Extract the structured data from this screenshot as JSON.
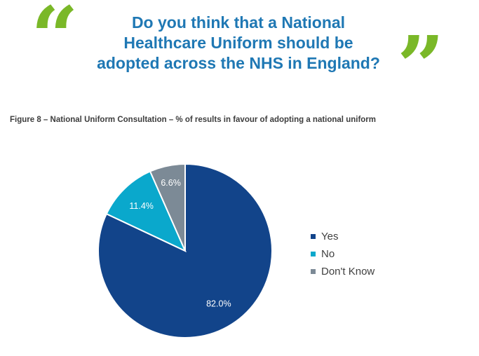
{
  "quotes": {
    "open": "“",
    "close": "”"
  },
  "header": {
    "lines": [
      "Do you think that a National",
      "Healthcare Uniform should be",
      "adopted across the NHS in England?"
    ]
  },
  "caption": "Figure 8 – National Uniform Consultation – % of results in favour of adopting a national uniform",
  "colors": {
    "question_text": "#1f78b4",
    "quote_marks": "#7ab828",
    "yes": "#12448a",
    "no": "#0aa8cc",
    "dont_know": "#7c8a96"
  },
  "chart_data": {
    "type": "pie",
    "title": "",
    "legend_position": "right",
    "slices": [
      {
        "name": "Yes",
        "value": 82.0,
        "label": "82.0%",
        "color": "#12448a"
      },
      {
        "name": "No",
        "value": 11.4,
        "label": "11.4%",
        "color": "#0aa8cc"
      },
      {
        "name": "Don't Know",
        "value": 6.6,
        "label": "6.6%",
        "color": "#7c8a96"
      }
    ]
  }
}
